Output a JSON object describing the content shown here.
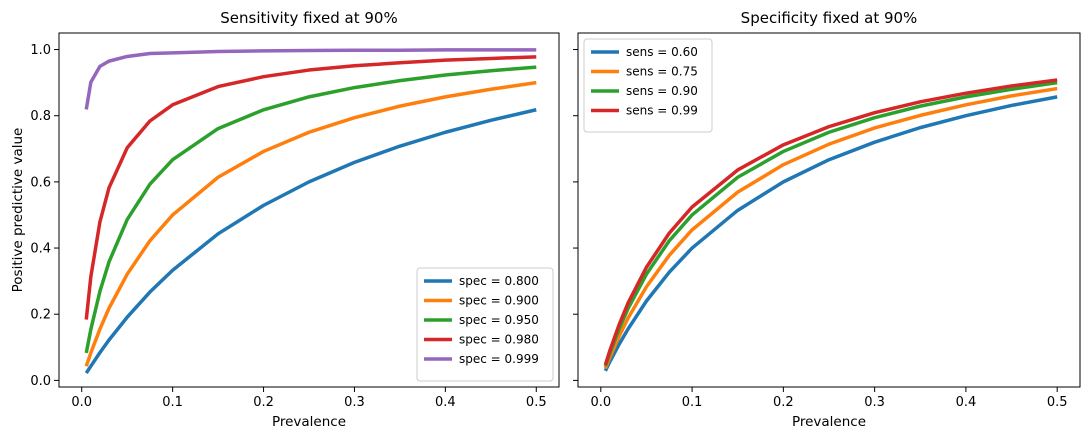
{
  "chart_data": [
    {
      "type": "line",
      "title": "Sensitivity fixed at 90%",
      "xlabel": "Prevalence",
      "ylabel": "Positive predictive value",
      "xlim": [
        -0.025,
        0.525
      ],
      "ylim": [
        -0.02,
        1.05
      ],
      "xticks": [
        0.0,
        0.1,
        0.2,
        0.3,
        0.4,
        0.5
      ],
      "xtick_labels": [
        "0.0",
        "0.1",
        "0.2",
        "0.3",
        "0.4",
        "0.5"
      ],
      "yticks": [
        0.0,
        0.2,
        0.4,
        0.6,
        0.8,
        1.0
      ],
      "ytick_labels": [
        "0.0",
        "0.2",
        "0.4",
        "0.6",
        "0.8",
        "1.0"
      ],
      "grid": false,
      "legend_position": "lower-right",
      "x": [
        0.005,
        0.01,
        0.02,
        0.03,
        0.05,
        0.075,
        0.1,
        0.15,
        0.2,
        0.25,
        0.3,
        0.35,
        0.4,
        0.45,
        0.5
      ],
      "series": [
        {
          "name": "spec = 0.800",
          "color": "#1f77b4",
          "values": [
            0.022,
            0.043,
            0.084,
            0.122,
            0.191,
            0.267,
            0.333,
            0.443,
            0.529,
            0.6,
            0.659,
            0.708,
            0.75,
            0.786,
            0.818
          ]
        },
        {
          "name": "spec = 0.900",
          "color": "#ff7f0e",
          "values": [
            0.043,
            0.083,
            0.155,
            0.218,
            0.321,
            0.422,
            0.5,
            0.614,
            0.692,
            0.75,
            0.794,
            0.829,
            0.857,
            0.88,
            0.9
          ]
        },
        {
          "name": "spec = 0.950",
          "color": "#2ca02c",
          "values": [
            0.083,
            0.154,
            0.269,
            0.358,
            0.486,
            0.593,
            0.667,
            0.761,
            0.818,
            0.857,
            0.885,
            0.906,
            0.923,
            0.936,
            0.947
          ]
        },
        {
          "name": "spec = 0.980",
          "color": "#d62728",
          "values": [
            0.184,
            0.313,
            0.479,
            0.582,
            0.703,
            0.784,
            0.833,
            0.888,
            0.918,
            0.938,
            0.951,
            0.96,
            0.968,
            0.973,
            0.978
          ]
        },
        {
          "name": "spec = 0.999",
          "color": "#9467bd",
          "values": [
            0.819,
            0.901,
            0.949,
            0.965,
            0.979,
            0.988,
            0.99,
            0.994,
            0.996,
            0.997,
            0.998,
            0.998,
            0.999,
            0.999,
            0.999
          ]
        }
      ]
    },
    {
      "type": "line",
      "title": "Specificity fixed at 90%",
      "xlabel": "Prevalence",
      "ylabel": "",
      "xlim": [
        -0.025,
        0.525
      ],
      "ylim": [
        -0.02,
        1.05
      ],
      "xticks": [
        0.0,
        0.1,
        0.2,
        0.3,
        0.4,
        0.5
      ],
      "xtick_labels": [
        "0.0",
        "0.1",
        "0.2",
        "0.3",
        "0.4",
        "0.5"
      ],
      "yticks": [
        0.0,
        0.2,
        0.4,
        0.6,
        0.8,
        1.0
      ],
      "ytick_labels": [],
      "grid": false,
      "legend_position": "upper-left",
      "x": [
        0.005,
        0.01,
        0.02,
        0.03,
        0.05,
        0.075,
        0.1,
        0.15,
        0.2,
        0.25,
        0.3,
        0.35,
        0.4,
        0.45,
        0.5
      ],
      "series": [
        {
          "name": "sens = 0.60",
          "color": "#1f77b4",
          "values": [
            0.029,
            0.057,
            0.109,
            0.156,
            0.24,
            0.327,
            0.4,
            0.514,
            0.6,
            0.667,
            0.72,
            0.764,
            0.8,
            0.831,
            0.857
          ]
        },
        {
          "name": "sens = 0.75",
          "color": "#ff7f0e",
          "values": [
            0.036,
            0.07,
            0.133,
            0.189,
            0.283,
            0.378,
            0.455,
            0.569,
            0.652,
            0.714,
            0.763,
            0.801,
            0.833,
            0.86,
            0.882
          ]
        },
        {
          "name": "sens = 0.90",
          "color": "#2ca02c",
          "values": [
            0.043,
            0.083,
            0.155,
            0.218,
            0.321,
            0.422,
            0.5,
            0.614,
            0.692,
            0.75,
            0.794,
            0.829,
            0.857,
            0.88,
            0.9
          ]
        },
        {
          "name": "sens = 0.99",
          "color": "#d62728",
          "values": [
            0.047,
            0.091,
            0.168,
            0.235,
            0.342,
            0.445,
            0.524,
            0.636,
            0.712,
            0.767,
            0.809,
            0.842,
            0.868,
            0.89,
            0.908
          ]
        }
      ]
    }
  ]
}
